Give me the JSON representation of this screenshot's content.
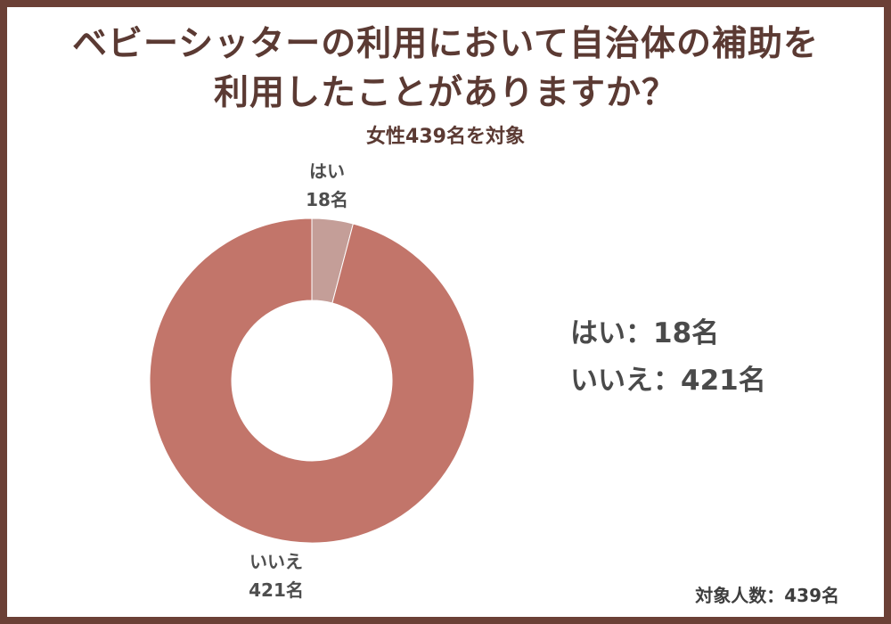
{
  "title_lines": [
    "ベビーシッターの利用において自治体の補助を",
    "利用したことがありますか？"
  ],
  "subtitle": "女性439名を対象",
  "chart_data": {
    "type": "pie",
    "donut": true,
    "categories": [
      "はい",
      "いいえ"
    ],
    "values": [
      18,
      421
    ],
    "unit": "名",
    "colors": [
      "#c49e98",
      "#c2756a"
    ],
    "slice_labels": [
      {
        "name": "はい",
        "value": "18名"
      },
      {
        "name": "いいえ",
        "value": "421名"
      }
    ],
    "start": "top",
    "direction": "clockwise",
    "legend_placement": "right"
  },
  "legend": [
    "はい：18名",
    "いいえ：421名"
  ],
  "footer": "対象人数：439名",
  "colors": {
    "frame": "#6b4036",
    "title": "#5b3a33",
    "text": "#4a4a4a"
  }
}
